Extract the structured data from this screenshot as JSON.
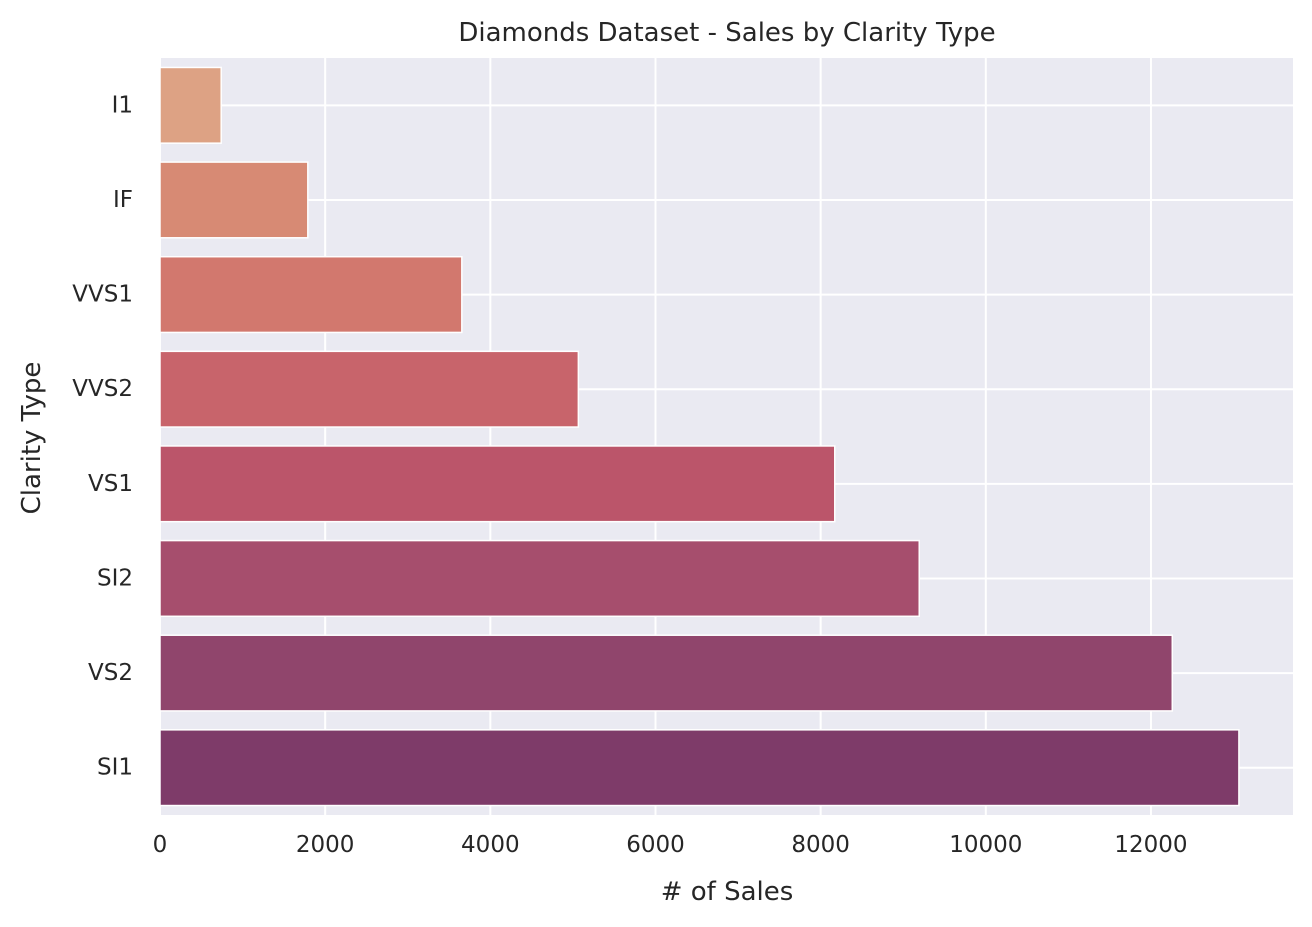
{
  "chart_data": {
    "type": "bar",
    "orientation": "horizontal",
    "title": "Diamonds Dataset - Sales by Clarity Type",
    "xlabel": "# of Sales",
    "ylabel": "Clarity Type",
    "categories": [
      "I1",
      "IF",
      "VVS1",
      "VVS2",
      "VS1",
      "SI2",
      "VS2",
      "SI1"
    ],
    "values": [
      741,
      1790,
      3655,
      5066,
      8171,
      9194,
      12258,
      13065
    ],
    "colors": [
      "#dda284",
      "#d78a74",
      "#d2786e",
      "#c8646b",
      "#bb556a",
      "#a64e6d",
      "#90456c",
      "#7e3b69"
    ],
    "xlim": [
      0,
      13720
    ],
    "xticks": [
      0,
      2000,
      4000,
      6000,
      8000,
      10000,
      12000
    ],
    "xtick_labels": [
      "0",
      "2000",
      "4000",
      "6000",
      "8000",
      "10000",
      "12000"
    ],
    "grid": true,
    "background_color": "#eaeaf2",
    "grid_color": "#ffffff"
  }
}
